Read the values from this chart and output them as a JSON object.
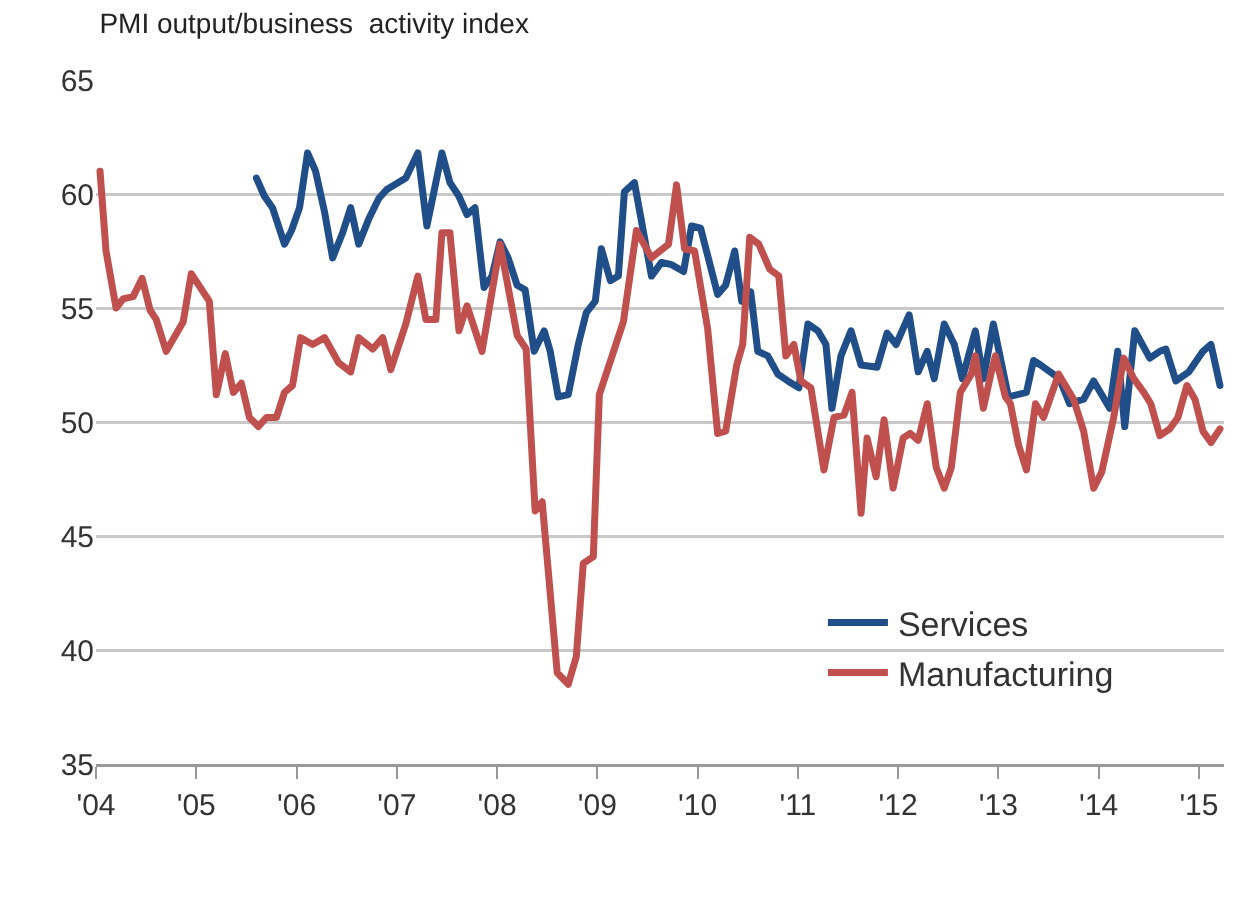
{
  "chart_data": {
    "type": "line",
    "title": "PMI output/business  activity index",
    "xlim": [
      2004,
      2015.25
    ],
    "xticks": [
      {
        "value": 2004,
        "label": "'04"
      },
      {
        "value": 2005,
        "label": "'05"
      },
      {
        "value": 2006,
        "label": "'06"
      },
      {
        "value": 2007,
        "label": "'07"
      },
      {
        "value": 2008,
        "label": "'08"
      },
      {
        "value": 2009,
        "label": "'09"
      },
      {
        "value": 2010,
        "label": "'10"
      },
      {
        "value": 2011,
        "label": "'11"
      },
      {
        "value": 2012,
        "label": "'12"
      },
      {
        "value": 2013,
        "label": "'13"
      },
      {
        "value": 2014,
        "label": "'14"
      },
      {
        "value": 2015,
        "label": "'15"
      }
    ],
    "ylim": [
      35,
      65
    ],
    "yticks": [
      35,
      40,
      45,
      50,
      55,
      60,
      65
    ],
    "grid": "y",
    "legend": "bottom right",
    "marker": "none",
    "line_style": "solid",
    "series": [
      {
        "name": "Services",
        "color": "#1f4e89",
        "x": [
          2005.6,
          2005.68,
          2005.76,
          2005.88,
          2005.95,
          2006.03,
          2006.11,
          2006.19,
          2006.28,
          2006.36,
          2006.46,
          2006.54,
          2006.62,
          2006.72,
          2006.82,
          2006.9,
          2007.09,
          2007.21,
          2007.3,
          2007.45,
          2007.53,
          2007.62,
          2007.7,
          2007.78,
          2007.87,
          2007.95,
          2008.03,
          2008.11,
          2008.2,
          2008.28,
          2008.37,
          2008.47,
          2008.53,
          2008.61,
          2008.71,
          2008.81,
          2008.89,
          2008.98,
          2009.04,
          2009.13,
          2009.21,
          2009.27,
          2009.37,
          2009.54,
          2009.64,
          2009.74,
          2009.86,
          2009.94,
          2010.03,
          2010.2,
          2010.28,
          2010.37,
          2010.44,
          2010.53,
          2010.6,
          2010.7,
          2010.8,
          2010.9,
          2011.01,
          2011.1,
          2011.2,
          2011.28,
          2011.34,
          2011.43,
          2011.53,
          2011.63,
          2011.79,
          2011.89,
          2011.98,
          2012.11,
          2012.2,
          2012.29,
          2012.36,
          2012.46,
          2012.56,
          2012.64,
          2012.77,
          2012.85,
          2012.95,
          2013.1,
          2013.28,
          2013.35,
          2013.42,
          2013.61,
          2013.71,
          2013.85,
          2013.95,
          2014.11,
          2014.19,
          2014.26,
          2014.36,
          2014.51,
          2014.61,
          2014.67,
          2014.77,
          2014.9,
          2015.04,
          2015.12,
          2015.21
        ],
        "values": [
          60.7,
          59.9,
          59.4,
          57.8,
          58.4,
          59.4,
          61.8,
          61.0,
          59.2,
          57.2,
          58.3,
          59.4,
          57.8,
          58.9,
          59.8,
          60.2,
          60.7,
          61.8,
          58.6,
          61.8,
          60.5,
          59.9,
          59.1,
          59.4,
          55.9,
          56.4,
          57.9,
          57.2,
          56.0,
          55.8,
          53.1,
          54.0,
          53.1,
          51.1,
          51.2,
          53.4,
          54.8,
          55.3,
          57.6,
          56.2,
          56.4,
          60.1,
          60.5,
          56.4,
          57.0,
          56.9,
          56.6,
          58.6,
          58.5,
          55.6,
          56.0,
          57.5,
          55.3,
          55.7,
          53.1,
          52.9,
          52.1,
          51.8,
          51.5,
          54.3,
          54.0,
          53.4,
          50.6,
          52.9,
          54.0,
          52.5,
          52.4,
          53.9,
          53.4,
          54.7,
          52.2,
          53.1,
          51.9,
          54.3,
          53.4,
          51.9,
          54.0,
          51.9,
          54.3,
          51.1,
          51.3,
          52.7,
          52.5,
          51.9,
          50.8,
          51.0,
          51.8,
          50.6,
          53.1,
          49.8,
          54.0,
          52.8,
          53.1,
          53.2,
          51.8,
          52.2,
          53.1,
          53.4,
          51.6
        ]
      },
      {
        "name": "Manufacturing",
        "color": "#c0504d",
        "x": [
          2004.04,
          2004.1,
          2004.2,
          2004.27,
          2004.37,
          2004.46,
          2004.54,
          2004.6,
          2004.7,
          2004.87,
          2004.95,
          2005.13,
          2005.2,
          2005.29,
          2005.37,
          2005.45,
          2005.53,
          2005.62,
          2005.7,
          2005.8,
          2005.88,
          2005.96,
          2006.04,
          2006.16,
          2006.28,
          2006.42,
          2006.54,
          2006.62,
          2006.76,
          2006.86,
          2006.94,
          2007.09,
          2007.21,
          2007.29,
          2007.39,
          2007.45,
          2007.53,
          2007.62,
          2007.7,
          2007.85,
          2008.03,
          2008.2,
          2008.29,
          2008.38,
          2008.45,
          2008.6,
          2008.71,
          2008.79,
          2008.86,
          2008.96,
          2009.02,
          2009.26,
          2009.39,
          2009.54,
          2009.71,
          2009.79,
          2009.87,
          2009.97,
          2010.1,
          2010.2,
          2010.28,
          2010.39,
          2010.45,
          2010.52,
          2010.61,
          2010.72,
          2010.81,
          2010.88,
          2010.96,
          2011.03,
          2011.13,
          2011.26,
          2011.36,
          2011.46,
          2011.54,
          2011.63,
          2011.69,
          2011.78,
          2011.86,
          2011.95,
          2012.05,
          2012.12,
          2012.2,
          2012.29,
          2012.38,
          2012.46,
          2012.53,
          2012.62,
          2012.73,
          2012.77,
          2012.85,
          2012.93,
          2012.97,
          2013.07,
          2013.12,
          2013.2,
          2013.28,
          2013.37,
          2013.45,
          2013.6,
          2013.75,
          2013.85,
          2013.95,
          2014.03,
          2014.15,
          2014.25,
          2014.35,
          2014.45,
          2014.52,
          2014.61,
          2014.71,
          2014.79,
          2014.88,
          2014.96,
          2015.04,
          2015.12,
          2015.21
        ],
        "values": [
          61.0,
          57.5,
          55.0,
          55.4,
          55.5,
          56.3,
          54.9,
          54.5,
          53.1,
          54.4,
          56.5,
          55.3,
          51.2,
          53.0,
          51.3,
          51.7,
          50.2,
          49.8,
          50.2,
          50.2,
          51.3,
          51.6,
          53.7,
          53.4,
          53.7,
          52.6,
          52.2,
          53.7,
          53.2,
          53.7,
          52.3,
          54.3,
          56.4,
          54.5,
          54.5,
          58.3,
          58.3,
          54.0,
          55.1,
          53.1,
          57.8,
          53.8,
          53.2,
          46.1,
          46.5,
          39.0,
          38.5,
          39.7,
          43.8,
          44.1,
          51.2,
          54.4,
          58.4,
          57.2,
          57.8,
          60.4,
          57.6,
          57.5,
          54.1,
          49.5,
          49.6,
          52.5,
          53.4,
          58.1,
          57.8,
          56.7,
          56.4,
          52.9,
          53.4,
          51.8,
          51.5,
          47.9,
          50.2,
          50.3,
          51.3,
          46.0,
          49.3,
          47.6,
          50.1,
          47.1,
          49.3,
          49.5,
          49.2,
          50.8,
          48.0,
          47.1,
          48.0,
          51.3,
          52.1,
          52.9,
          50.6,
          52.2,
          52.9,
          51.1,
          50.8,
          49.0,
          47.9,
          50.8,
          50.2,
          52.1,
          51.0,
          49.6,
          47.1,
          47.8,
          50.2,
          52.8,
          51.9,
          51.3,
          50.8,
          49.4,
          49.7,
          50.2,
          51.6,
          51.0,
          49.6,
          49.1,
          49.7
        ]
      }
    ]
  }
}
